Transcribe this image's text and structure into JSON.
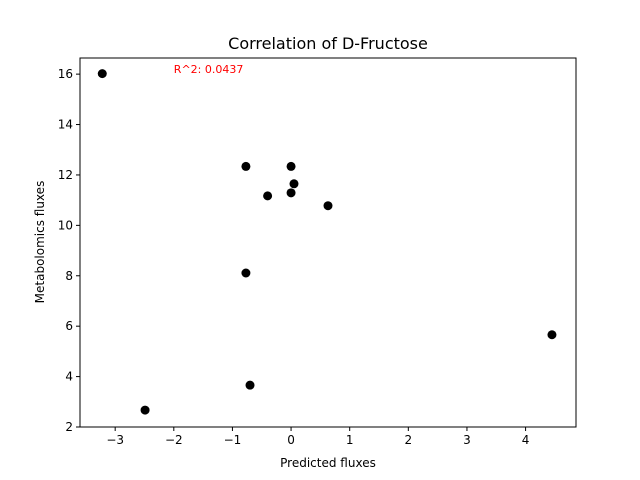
{
  "chart_data": {
    "type": "scatter",
    "title": "Correlation of D-Fructose",
    "xlabel": "Predicted fluxes",
    "ylabel": "Metabolomics fluxes",
    "xlim": [
      -3.6,
      4.86
    ],
    "ylim": [
      2.0,
      16.64
    ],
    "xticks": [
      -3,
      -2,
      -1,
      0,
      1,
      2,
      3,
      4
    ],
    "xtick_labels": [
      "−3",
      "−2",
      "−1",
      "0",
      "1",
      "2",
      "3",
      "4"
    ],
    "yticks": [
      2,
      4,
      6,
      8,
      10,
      12,
      14,
      16
    ],
    "ytick_labels": [
      "2",
      "4",
      "6",
      "8",
      "10",
      "12",
      "14",
      "16"
    ],
    "grid": false,
    "marker_color": "#000000",
    "points": [
      {
        "x": -3.22,
        "y": 16.02
      },
      {
        "x": -2.49,
        "y": 2.67
      },
      {
        "x": -0.77,
        "y": 12.34
      },
      {
        "x": -0.77,
        "y": 8.11
      },
      {
        "x": -0.7,
        "y": 3.66
      },
      {
        "x": -0.4,
        "y": 11.17
      },
      {
        "x": 0.0,
        "y": 12.34
      },
      {
        "x": 0.0,
        "y": 11.29
      },
      {
        "x": 0.05,
        "y": 11.65
      },
      {
        "x": 0.63,
        "y": 10.78
      },
      {
        "x": 4.45,
        "y": 5.66
      }
    ],
    "annotation": {
      "text": "R^2: 0.0437",
      "color": "#ff0000",
      "x": -2.0,
      "y": 16.2
    }
  }
}
